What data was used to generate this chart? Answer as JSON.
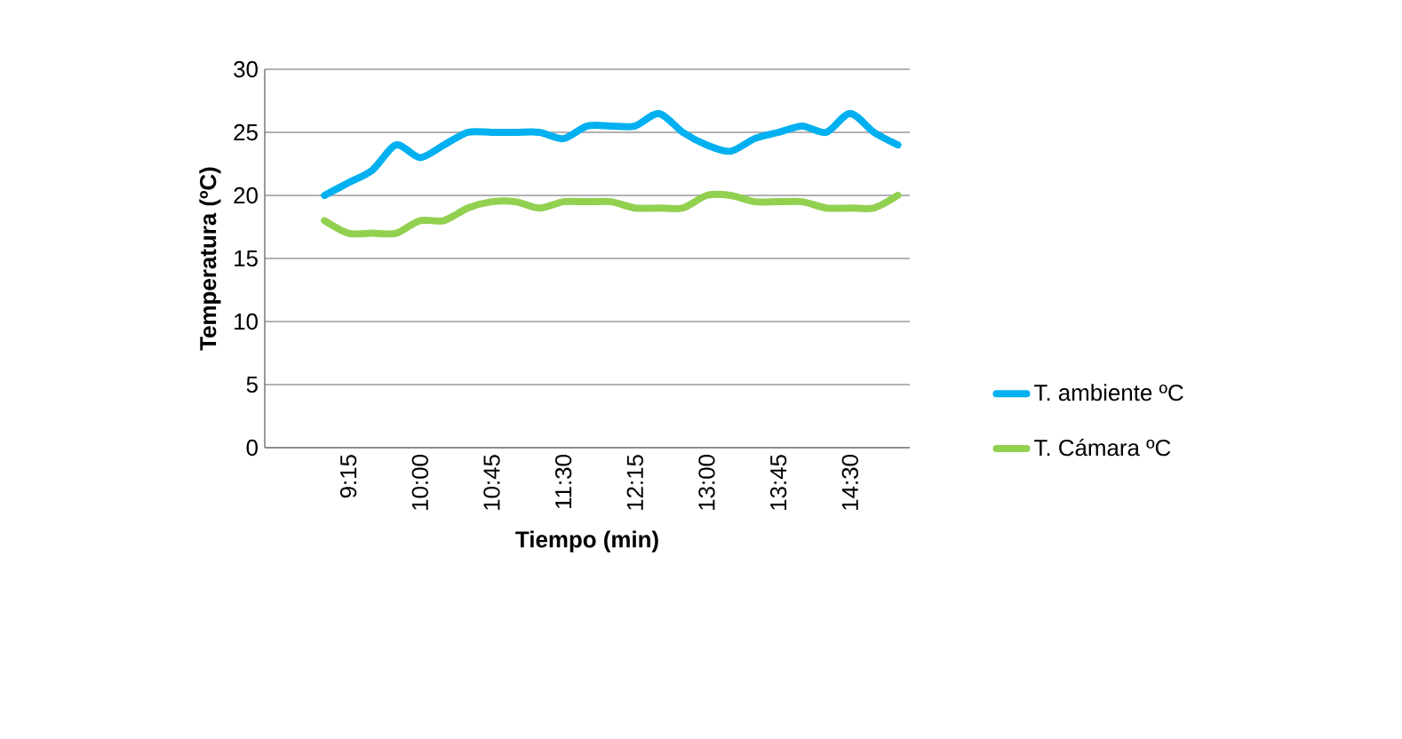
{
  "chart_data": {
    "type": "line",
    "xlabel": "Tiempo (min)",
    "ylabel": "Temperatura (ºC)",
    "categories": [
      null,
      null,
      null,
      "9:15",
      null,
      null,
      "10:00",
      null,
      null,
      "10:45",
      null,
      null,
      "11:30",
      null,
      null,
      "12:15",
      null,
      null,
      "13:00",
      null,
      null,
      "13:45",
      null,
      null,
      "14:30",
      null,
      null
    ],
    "series": [
      {
        "name": "T. ambiente ºC",
        "color": "#00b0f0",
        "values": [
          null,
          null,
          20,
          21,
          22,
          24,
          23,
          24,
          25,
          25,
          25,
          25,
          24.5,
          25.5,
          25.5,
          25.5,
          26.5,
          25,
          24,
          23.5,
          24.5,
          25,
          25.5,
          25,
          26.5,
          25,
          24
        ]
      },
      {
        "name": "T. Cámara ºC",
        "color": "#92d050",
        "values": [
          null,
          null,
          18,
          17,
          17,
          17,
          18,
          18,
          19,
          19.5,
          19.5,
          19,
          19.5,
          19.5,
          19.5,
          19,
          19,
          19,
          20,
          20,
          19.5,
          19.5,
          19.5,
          19,
          19,
          19,
          20
        ]
      }
    ],
    "ylim": [
      0,
      30
    ],
    "yticks": [
      0,
      5,
      10,
      15,
      20,
      25,
      30
    ],
    "grid": "y",
    "legend": "right",
    "marker": "none",
    "line_style": "solid"
  }
}
